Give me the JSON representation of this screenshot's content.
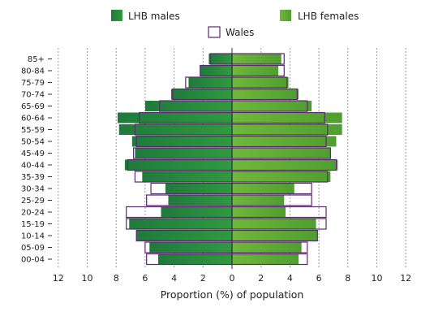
{
  "chart_data": {
    "type": "bar",
    "orientation": "horizontal-population-pyramid",
    "xlabel": "Proportion (%) of population",
    "ylabel": "",
    "xlim": [
      -12,
      12
    ],
    "x_ticks": [
      -12,
      -10,
      -8,
      -6,
      -4,
      -2,
      0,
      2,
      4,
      6,
      8,
      10,
      12
    ],
    "x_tick_labels": [
      "12",
      "10",
      "8",
      "6",
      "4",
      "2",
      "0",
      "2",
      "4",
      "6",
      "8",
      "10",
      "12"
    ],
    "grid": "vertical dotted",
    "legend_position": "top",
    "categories": [
      "85+",
      "80-84",
      "75-79",
      "70-74",
      "65-69",
      "60-64",
      "55-59",
      "50-54",
      "45-49",
      "40-44",
      "35-39",
      "30-34",
      "25-29",
      "20-24",
      "15-19",
      "10-14",
      "05-09",
      "00-04"
    ],
    "series": [
      {
        "name": "LHB males",
        "side": "left",
        "color": "#2a7a3a",
        "values": [
          1.6,
          2.2,
          3.0,
          4.2,
          6.0,
          7.9,
          7.8,
          6.9,
          6.7,
          7.4,
          6.2,
          4.6,
          4.4,
          4.9,
          7.1,
          6.6,
          5.7,
          5.1
        ]
      },
      {
        "name": "LHB females",
        "side": "right",
        "color": "#7cc142",
        "values": [
          3.4,
          3.2,
          3.9,
          4.6,
          5.5,
          7.6,
          7.6,
          7.2,
          6.8,
          7.3,
          6.8,
          4.3,
          3.6,
          3.7,
          5.8,
          5.9,
          4.8,
          4.6
        ]
      },
      {
        "name": "Wales",
        "style": "outline",
        "color": "#5a2a6e",
        "male_values": [
          1.5,
          2.2,
          3.2,
          4.1,
          5.0,
          6.4,
          6.7,
          6.6,
          6.8,
          7.2,
          6.7,
          5.6,
          5.9,
          7.3,
          7.3,
          6.6,
          6.0,
          5.9
        ],
        "female_values": [
          3.6,
          3.6,
          3.8,
          4.5,
          5.2,
          6.4,
          6.6,
          6.5,
          6.8,
          7.2,
          6.6,
          5.5,
          5.5,
          6.5,
          6.5,
          5.9,
          5.2,
          5.2
        ]
      }
    ]
  }
}
